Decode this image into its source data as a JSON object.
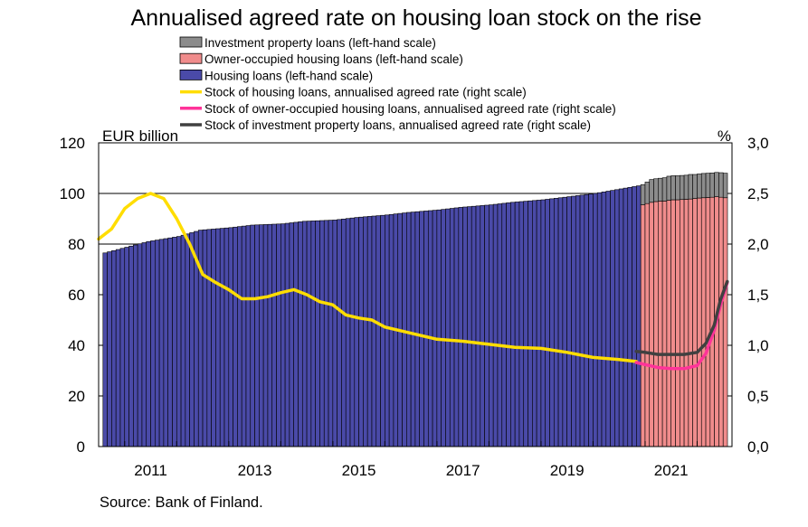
{
  "chart_data": {
    "type": "bar",
    "title": "Annualised agreed rate on housing loan stock on the rise",
    "left_axis": {
      "unit": "EUR billion",
      "ylim": [
        0,
        120
      ],
      "ticks": [
        "0",
        "20",
        "40",
        "60",
        "80",
        "100",
        "120"
      ]
    },
    "right_axis": {
      "unit": "%",
      "ylim": [
        0,
        3
      ],
      "ticks": [
        "0,0",
        "0,5",
        "1,0",
        "1,5",
        "2,0",
        "2,5",
        "3,0"
      ]
    },
    "x_axis": {
      "range": [
        2010.5,
        2022.67
      ],
      "ticks": [
        "2011",
        "2013",
        "2015",
        "2017",
        "2019",
        "2021"
      ]
    },
    "grid": "horizontal",
    "legend_position": "top",
    "source": "Source: Bank of Finland.",
    "bar_series": [
      {
        "key": "investment",
        "name": "Investment property loans (left-hand scale)",
        "color": "#8c8c8c",
        "from": "2020-12",
        "values": [
          8.0,
          8.5,
          9.0,
          9.0,
          9.0,
          9.2,
          9.5,
          9.5,
          9.5,
          9.5,
          9.5,
          9.7,
          9.5,
          9.5,
          9.6,
          9.6,
          9.6,
          9.6,
          9.7,
          9.7
        ]
      },
      {
        "key": "owner_occupied",
        "name": "Owner-occupied housing loans (left-hand scale)",
        "color": "#f08c8c",
        "from": "2020-12",
        "values": [
          95.5,
          96.0,
          96.5,
          96.8,
          97.0,
          97.0,
          97.3,
          97.5,
          97.5,
          97.6,
          97.7,
          97.8,
          98.0,
          98.2,
          98.3,
          98.4,
          98.5,
          98.7,
          98.5,
          98.3
        ]
      },
      {
        "key": "housing",
        "name": "Housing loans (left-hand scale)",
        "color": "#4a4aa8",
        "from": "2010-08",
        "to": "2020-11",
        "anchors": [
          [
            "2010-08",
            76.5
          ],
          [
            "2011-06",
            81.0
          ],
          [
            "2012-01",
            83.0
          ],
          [
            "2012-06",
            85.5
          ],
          [
            "2013-01",
            86.5
          ],
          [
            "2013-06",
            87.5
          ],
          [
            "2014-01",
            88.0
          ],
          [
            "2014-06",
            89.0
          ],
          [
            "2015-01",
            89.5
          ],
          [
            "2015-06",
            90.5
          ],
          [
            "2016-01",
            91.5
          ],
          [
            "2016-06",
            92.5
          ],
          [
            "2017-01",
            93.5
          ],
          [
            "2017-06",
            94.5
          ],
          [
            "2018-01",
            95.5
          ],
          [
            "2018-06",
            96.5
          ],
          [
            "2019-01",
            97.5
          ],
          [
            "2019-06",
            98.5
          ],
          [
            "2020-01",
            100.0
          ],
          [
            "2020-06",
            101.5
          ],
          [
            "2020-11",
            103.0
          ]
        ]
      }
    ],
    "line_series": [
      {
        "key": "housing_rate",
        "name": "Stock of housing loans, annualised agreed rate (right scale)",
        "color": "#ffdd00",
        "points": [
          [
            2010.5,
            2.05
          ],
          [
            2010.75,
            2.15
          ],
          [
            2011.0,
            2.35
          ],
          [
            2011.25,
            2.45
          ],
          [
            2011.5,
            2.5
          ],
          [
            2011.75,
            2.45
          ],
          [
            2012.0,
            2.25
          ],
          [
            2012.25,
            2.0
          ],
          [
            2012.5,
            1.7
          ],
          [
            2012.75,
            1.62
          ],
          [
            2013.0,
            1.55
          ],
          [
            2013.25,
            1.46
          ],
          [
            2013.5,
            1.46
          ],
          [
            2013.75,
            1.48
          ],
          [
            2014.0,
            1.52
          ],
          [
            2014.25,
            1.55
          ],
          [
            2014.5,
            1.5
          ],
          [
            2014.75,
            1.43
          ],
          [
            2015.0,
            1.4
          ],
          [
            2015.25,
            1.3
          ],
          [
            2015.5,
            1.27
          ],
          [
            2015.75,
            1.25
          ],
          [
            2016.0,
            1.18
          ],
          [
            2016.5,
            1.12
          ],
          [
            2017.0,
            1.06
          ],
          [
            2017.5,
            1.04
          ],
          [
            2018.0,
            1.01
          ],
          [
            2018.5,
            0.98
          ],
          [
            2019.0,
            0.97
          ],
          [
            2019.5,
            0.93
          ],
          [
            2020.0,
            0.88
          ],
          [
            2020.5,
            0.86
          ],
          [
            2020.83,
            0.84
          ]
        ]
      },
      {
        "key": "owner_occupied_rate",
        "name": "Stock of owner-occupied housing loans, annualised agreed rate (right scale)",
        "color": "#ff3399",
        "points": [
          [
            2020.83,
            0.83
          ],
          [
            2021.0,
            0.81
          ],
          [
            2021.25,
            0.78
          ],
          [
            2021.5,
            0.77
          ],
          [
            2021.75,
            0.77
          ],
          [
            2022.0,
            0.8
          ],
          [
            2022.17,
            0.92
          ],
          [
            2022.33,
            1.15
          ],
          [
            2022.45,
            1.4
          ],
          [
            2022.58,
            1.62
          ]
        ]
      },
      {
        "key": "investment_rate",
        "name": "Stock of investment property loans, annualised agreed rate (right scale)",
        "color": "#404040",
        "points": [
          [
            2020.83,
            0.94
          ],
          [
            2021.0,
            0.93
          ],
          [
            2021.25,
            0.91
          ],
          [
            2021.5,
            0.91
          ],
          [
            2021.75,
            0.91
          ],
          [
            2022.0,
            0.93
          ],
          [
            2022.17,
            1.02
          ],
          [
            2022.33,
            1.2
          ],
          [
            2022.45,
            1.45
          ],
          [
            2022.58,
            1.63
          ]
        ]
      }
    ]
  }
}
